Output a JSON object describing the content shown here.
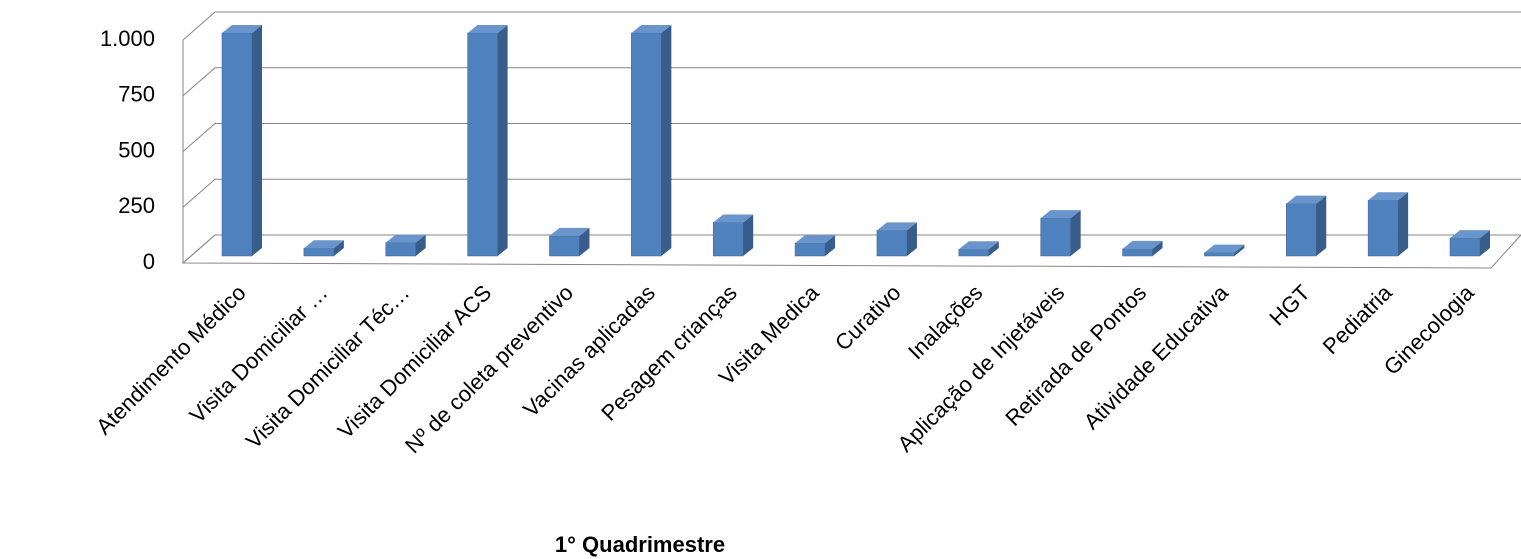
{
  "chart_data": {
    "type": "bar3d",
    "x_label": "1° Quadrimestre",
    "categories": [
      "Atendimento Médico",
      "Visita Domiciliar …",
      "Visita Domiciliar Téc…",
      "Visita Domiciliar ACS",
      "Nº de coleta preventivo",
      "Vacinas aplicadas",
      "Pesagem crianças",
      "Visita Medica",
      "Curativo",
      "Inalações",
      "Aplicação de Injetáveis",
      "Retirada de Pontos",
      "Atividade Educativa",
      "HGT",
      "Pediatria",
      "Ginecologia"
    ],
    "values": [
      1000,
      35,
      60,
      1000,
      90,
      1000,
      150,
      58,
      115,
      30,
      170,
      32,
      15,
      235,
      250,
      80
    ],
    "color": "#4f81bd",
    "ylim": [
      0,
      1000
    ],
    "yticks": [
      0,
      250,
      500,
      750,
      {
        "value": 1000,
        "label": "1.000"
      }
    ],
    "grid": true
  }
}
